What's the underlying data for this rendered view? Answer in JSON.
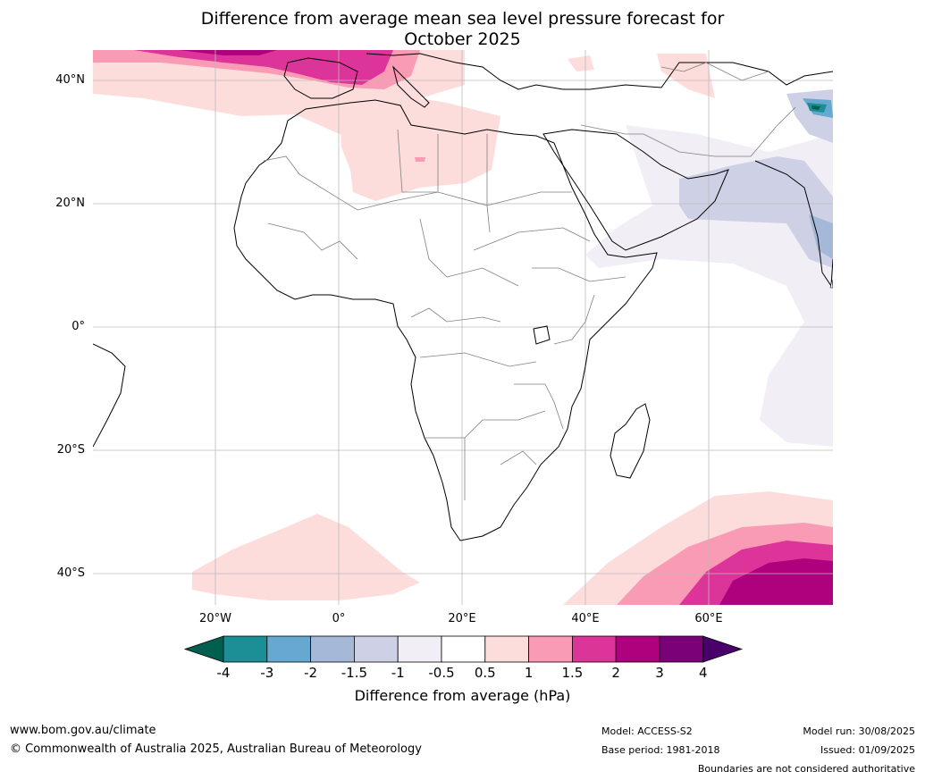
{
  "title_line1": "Difference from average mean sea level pressure forecast for",
  "title_line2": "October 2025",
  "lat_labels": [
    "40°N",
    "20°N",
    "0°",
    "20°S",
    "40°S"
  ],
  "lon_labels": [
    "20°W",
    "0°",
    "20°E",
    "40°E",
    "60°E"
  ],
  "colorbar": {
    "label": "Difference from average (hPa)",
    "ticks": [
      "-4",
      "-3",
      "-2",
      "-1.5",
      "-1",
      "-0.5",
      "0.5",
      "1",
      "1.5",
      "2",
      "3",
      "4"
    ],
    "colors": [
      "#005f4f",
      "#1c8f96",
      "#66a8d0",
      "#a5b8d8",
      "#ced1e6",
      "#f1eef5",
      "#ffffff",
      "#fddcdc",
      "#f99bb4",
      "#dd3499",
      "#ae017e",
      "#7a0177",
      "#49006a"
    ]
  },
  "footer": {
    "website": "www.bom.gov.au/climate",
    "copyright": "© Commonwealth of Australia 2025, Australian Bureau of Meteorology",
    "model": "Model: ACCESS-S2",
    "base_period": "Base period: 1981-2018",
    "model_run": "Model run: 30/08/2025",
    "issued": "Issued: 01/09/2025",
    "disclaimer": "Boundaries are not considered authoritative"
  }
}
